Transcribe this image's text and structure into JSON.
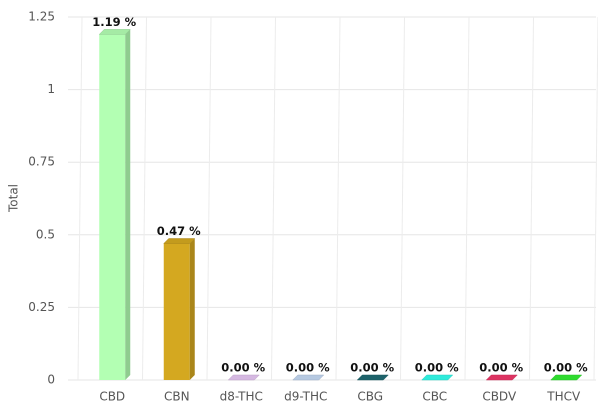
{
  "chart_data": {
    "type": "bar",
    "categories": [
      "CBD",
      "CBN",
      "d8-THC",
      "d9-THC",
      "CBG",
      "CBC",
      "CBDV",
      "THCV"
    ],
    "values": [
      1.19,
      0.47,
      0,
      0,
      0,
      0,
      0,
      0
    ],
    "value_labels": [
      "1.19 %",
      "0.47 %",
      "0.00 %",
      "0.00 %",
      "0.00 %",
      "0.00 %",
      "0.00 %",
      "0.00 %"
    ],
    "colors": [
      "#b3ffb3",
      "#d4a820",
      "#e8c8f5",
      "#c6daf5",
      "#1f6b73",
      "#33ffee",
      "#f0386b",
      "#33ee33"
    ],
    "ylabel": "Total",
    "ylim": [
      0,
      1.25
    ],
    "yticks": [
      0,
      0.25,
      0.5,
      0.75,
      1,
      1.25
    ],
    "grid": true
  }
}
